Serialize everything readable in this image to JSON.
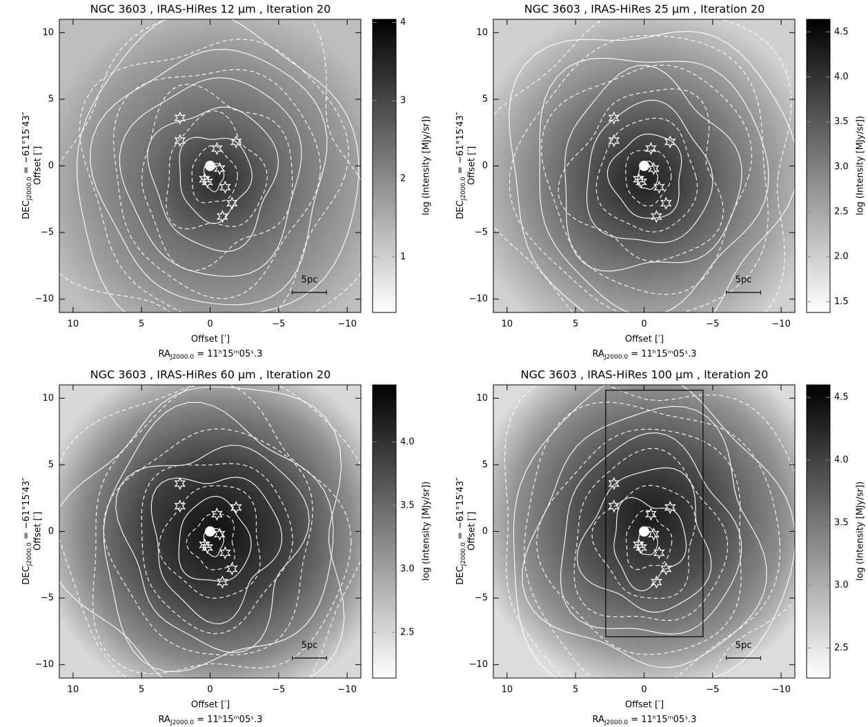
{
  "chart_data": [
    {
      "type": "image",
      "title": "NGC 3603 , IRAS-HiRes 12 μm , Iteration 20",
      "xlabel": "Offset [′]",
      "ylabel": "Offset [′]",
      "dec_label": {
        "prefix": "DEC",
        "sub": "J2000.0",
        "rest": " = −61°15′43″"
      },
      "ra_label": {
        "prefix": "RA",
        "sub": "J2000.0",
        "rest": " = 11ʰ15ᵐ05ˢ.3"
      },
      "colorbar_label": "log (Intensity [MJy/sr])",
      "xlim": [
        11,
        -11
      ],
      "ylim": [
        -11,
        11
      ],
      "xticks": [
        10,
        5,
        0,
        {
          "value": -5,
          "label": "−5"
        },
        {
          "value": -10,
          "label": "−10"
        }
      ],
      "yticks": [
        {
          "value": -10,
          "label": "−10"
        },
        {
          "value": -5,
          "label": "−5"
        },
        0,
        5,
        10
      ],
      "clim": [
        0.29,
        4.04
      ],
      "cticks": [
        1,
        2,
        3,
        4
      ],
      "stars": {
        "x": [
          2.2,
          2.2,
          -0.5,
          -1.9,
          -0.7,
          0.4,
          0.2,
          -1.1,
          -1.6,
          -0.9
        ],
        "y": [
          3.6,
          1.9,
          1.3,
          1.8,
          -0.2,
          -1.0,
          -1.2,
          -1.6,
          -2.8,
          -3.8
        ]
      },
      "source": {
        "x": 0,
        "y": 0
      },
      "scalebar": {
        "label": "5pc",
        "x": [
          -6,
          -8.5
        ],
        "y": -9.5
      }
    },
    {
      "type": "image",
      "title": "NGC 3603 , IRAS-HiRes 25 μm , Iteration 20",
      "xlabel": "Offset [′]",
      "ylabel": "Offset [′]",
      "dec_label": {
        "prefix": "DEC",
        "sub": "J2000.0",
        "rest": " = −61°15′43″"
      },
      "ra_label": {
        "prefix": "RA",
        "sub": "J2000.0",
        "rest": " = 11ʰ15ᵐ05ˢ.3"
      },
      "colorbar_label": "log (Intensity [MJy/sr])",
      "xlim": [
        11,
        -11
      ],
      "ylim": [
        -11,
        11
      ],
      "xticks": [
        10,
        5,
        0,
        {
          "value": -5,
          "label": "−5"
        },
        {
          "value": -10,
          "label": "−10"
        }
      ],
      "yticks": [
        {
          "value": -10,
          "label": "−10"
        },
        {
          "value": -5,
          "label": "−5"
        },
        0,
        5,
        10
      ],
      "clim": [
        1.38,
        4.64
      ],
      "cticks": [
        1.5,
        {
          "value": 2,
          "label": "2.0"
        },
        2.5,
        {
          "value": 3,
          "label": "3.0"
        },
        3.5,
        {
          "value": 4,
          "label": "4.0"
        },
        4.5
      ],
      "stars": {
        "x": [
          2.2,
          2.2,
          -0.5,
          -1.9,
          -0.7,
          0.4,
          0.2,
          -1.1,
          -1.6,
          -0.9
        ],
        "y": [
          3.6,
          1.9,
          1.3,
          1.8,
          -0.2,
          -1.0,
          -1.2,
          -1.6,
          -2.8,
          -3.8
        ]
      },
      "source": {
        "x": 0,
        "y": 0
      },
      "scalebar": {
        "label": "5pc",
        "x": [
          -6,
          -8.5
        ],
        "y": -9.5
      }
    },
    {
      "type": "image",
      "title": "NGC 3603 , IRAS-HiRes 60 μm , Iteration 20",
      "xlabel": "Offset [′]",
      "ylabel": "Offset [′]",
      "dec_label": {
        "prefix": "DEC",
        "sub": "J2000.0",
        "rest": " = −61°15′43″"
      },
      "ra_label": {
        "prefix": "RA",
        "sub": "J2000.0",
        "rest": " = 11ʰ15ᵐ05ˢ.3"
      },
      "colorbar_label": "log (Intensity [MJy/sr])",
      "xlim": [
        11,
        -11
      ],
      "ylim": [
        -11,
        11
      ],
      "xticks": [
        10,
        5,
        0,
        {
          "value": -5,
          "label": "−5"
        },
        {
          "value": -10,
          "label": "−10"
        }
      ],
      "yticks": [
        {
          "value": -10,
          "label": "−10"
        },
        {
          "value": -5,
          "label": "−5"
        },
        0,
        5,
        10
      ],
      "clim": [
        2.14,
        4.45
      ],
      "cticks": [
        2.5,
        {
          "value": 3,
          "label": "3.0"
        },
        3.5,
        {
          "value": 4,
          "label": "4.0"
        }
      ],
      "stars": {
        "x": [
          2.2,
          2.2,
          -0.5,
          -1.9,
          -0.7,
          0.4,
          0.2,
          -1.1,
          -1.6,
          -0.9
        ],
        "y": [
          3.6,
          1.9,
          1.3,
          1.8,
          -0.2,
          -1.0,
          -1.2,
          -1.6,
          -2.8,
          -3.8
        ]
      },
      "source": {
        "x": 0,
        "y": 0
      },
      "scalebar": {
        "label": "5pc",
        "x": [
          -6,
          -8.5
        ],
        "y": -9.5
      }
    },
    {
      "type": "image",
      "title": "NGC 3603 , IRAS-HiRes 100 μm , Iteration 20",
      "xlabel": "Offset [′]",
      "ylabel": "Offset [′]",
      "dec_label": {
        "prefix": "DEC",
        "sub": "J2000.0",
        "rest": " = −61°15′43″"
      },
      "ra_label": {
        "prefix": "RA",
        "sub": "J2000.0",
        "rest": " = 11ʰ15ᵐ05ˢ.3"
      },
      "colorbar_label": "log (Intensity [MJy/sr])",
      "xlim": [
        11,
        -11
      ],
      "ylim": [
        -11,
        11
      ],
      "xticks": [
        10,
        5,
        0,
        {
          "value": -5,
          "label": "−5"
        },
        {
          "value": -10,
          "label": "−10"
        }
      ],
      "yticks": [
        {
          "value": -10,
          "label": "−10"
        },
        {
          "value": -5,
          "label": "−5"
        },
        0,
        5,
        10
      ],
      "clim": [
        2.26,
        4.6
      ],
      "cticks": [
        2.5,
        {
          "value": 3,
          "label": "3.0"
        },
        3.5,
        {
          "value": 4,
          "label": "4.0"
        },
        4.5
      ],
      "stars": {
        "x": [
          2.2,
          2.2,
          -0.5,
          -1.9,
          -0.7,
          0.4,
          0.2,
          -1.1,
          -1.6,
          -0.9
        ],
        "y": [
          3.6,
          1.9,
          1.3,
          1.8,
          -0.2,
          -1.0,
          -1.2,
          -1.6,
          -2.8,
          -3.8
        ]
      },
      "source": {
        "x": 0,
        "y": 0
      },
      "scalebar": {
        "label": "5pc",
        "x": [
          -6,
          -8.5
        ],
        "y": -9.5
      },
      "rectangle": {
        "x": [
          2.8,
          -4.3
        ],
        "y": [
          -7.9,
          10.6
        ]
      }
    }
  ]
}
